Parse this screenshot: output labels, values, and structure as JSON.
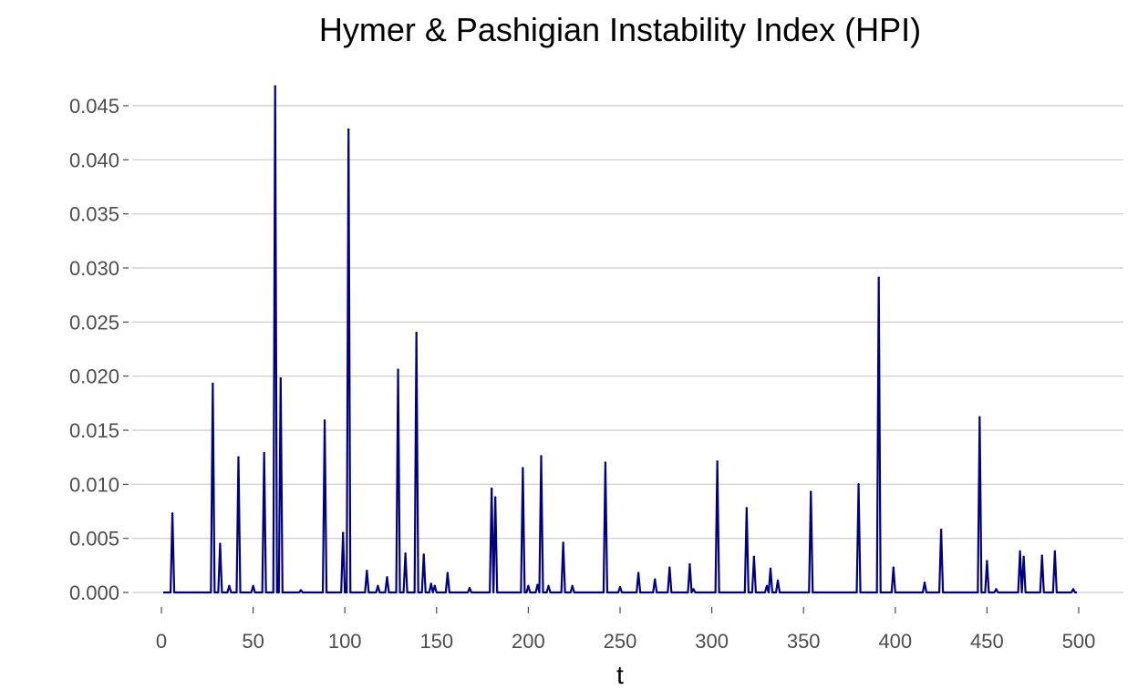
{
  "chart_data": {
    "type": "line",
    "title": "Hymer & Pashigian Instability Index (HPI)",
    "xlabel": "t",
    "ylabel": "",
    "xlim": [
      0,
      500
    ],
    "ylim": [
      0,
      0.047
    ],
    "x_ticks": [
      0,
      50,
      100,
      150,
      200,
      250,
      300,
      350,
      400,
      450,
      500
    ],
    "x_tick_labels": [
      "0",
      "50",
      "100",
      "150",
      "200",
      "250",
      "300",
      "350",
      "400",
      "450",
      "500"
    ],
    "y_ticks": [
      0,
      0.005,
      0.01,
      0.015,
      0.02,
      0.025,
      0.03,
      0.035,
      0.04,
      0.045
    ],
    "y_tick_labels": [
      "0.000",
      "0.005",
      "0.010",
      "0.015",
      "0.020",
      "0.025",
      "0.030",
      "0.035",
      "0.040",
      "0.045"
    ],
    "grid": "horizontal",
    "legend": "none",
    "series_color": "#000080",
    "peaks": [
      [
        6,
        0.0073
      ],
      [
        28,
        0.0193
      ],
      [
        32,
        0.0045
      ],
      [
        37,
        0.0006
      ],
      [
        42,
        0.0125
      ],
      [
        50,
        0.0006
      ],
      [
        56,
        0.0129
      ],
      [
        62,
        0.0468
      ],
      [
        65,
        0.0198
      ],
      [
        76,
        0.0002
      ],
      [
        89,
        0.0159
      ],
      [
        99,
        0.0055
      ],
      [
        102,
        0.0428
      ],
      [
        112,
        0.002
      ],
      [
        118,
        0.0006
      ],
      [
        123,
        0.0014
      ],
      [
        129,
        0.0206
      ],
      [
        133,
        0.0036
      ],
      [
        139,
        0.024
      ],
      [
        143,
        0.0035
      ],
      [
        147,
        0.0008
      ],
      [
        149,
        0.0006
      ],
      [
        156,
        0.0018
      ],
      [
        168,
        0.0004
      ],
      [
        180,
        0.0096
      ],
      [
        182,
        0.0088
      ],
      [
        197,
        0.0115
      ],
      [
        200,
        0.0006
      ],
      [
        205,
        0.0007
      ],
      [
        207,
        0.0126
      ],
      [
        211,
        0.0006
      ],
      [
        219,
        0.0046
      ],
      [
        224,
        0.0006
      ],
      [
        242,
        0.012
      ],
      [
        250,
        0.0005
      ],
      [
        260,
        0.0018
      ],
      [
        269,
        0.0012
      ],
      [
        277,
        0.0023
      ],
      [
        288,
        0.0026
      ],
      [
        290,
        0.0003
      ],
      [
        303,
        0.0121
      ],
      [
        319,
        0.0078
      ],
      [
        323,
        0.0033
      ],
      [
        330,
        0.0006
      ],
      [
        332,
        0.0022
      ],
      [
        336,
        0.0011
      ],
      [
        354,
        0.0093
      ],
      [
        380,
        0.01
      ],
      [
        391,
        0.0291
      ],
      [
        399,
        0.0023
      ],
      [
        416,
        0.0009
      ],
      [
        425,
        0.0058
      ],
      [
        446,
        0.0162
      ],
      [
        450,
        0.0029
      ],
      [
        455,
        0.0003
      ],
      [
        468,
        0.0038
      ],
      [
        470,
        0.0033
      ],
      [
        480,
        0.0034
      ],
      [
        487,
        0.0038
      ],
      [
        497,
        0.0003
      ]
    ]
  }
}
